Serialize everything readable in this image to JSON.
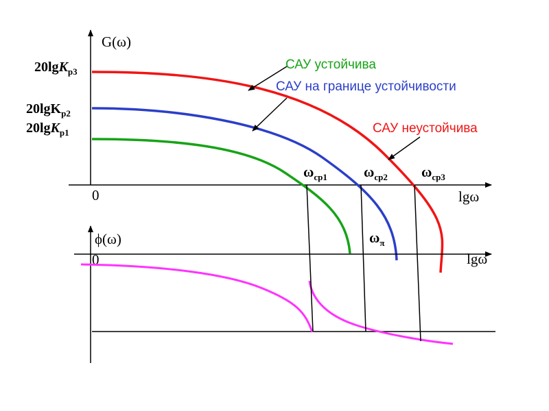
{
  "colors": {
    "stable": "#17a317",
    "boundary": "#2b3fc8",
    "unstable": "#f01515",
    "phase": "#ff33ff",
    "axis": "#000000"
  },
  "amplitude_plot": {
    "y_axis_label": "G(ω)",
    "x_axis_label": "lgω",
    "origin_label": "0",
    "gain_labels": {
      "k3": {
        "prefix": "20lg",
        "var": "K",
        "sub": "р3"
      },
      "k2": {
        "prefix": "20lgK",
        "var": "",
        "sub": "р2"
      },
      "k1": {
        "prefix": "20lg",
        "var": "K",
        "sub": "р1"
      }
    },
    "crossover_labels": [
      {
        "main": "ω",
        "sub": "ср1"
      },
      {
        "main": "ω",
        "sub": "ср2"
      },
      {
        "main": "ω",
        "sub": "ср3"
      }
    ]
  },
  "phase_plot": {
    "y_axis_label": "ϕ(ω)",
    "x_axis_label": "lgω",
    "origin_label": "0",
    "pi_label": {
      "main": "ω",
      "sub": "π"
    }
  },
  "annotations": {
    "stable": "САУ устойчива",
    "boundary": "САУ на границе устойчивости",
    "unstable": "САУ неустойчива"
  }
}
